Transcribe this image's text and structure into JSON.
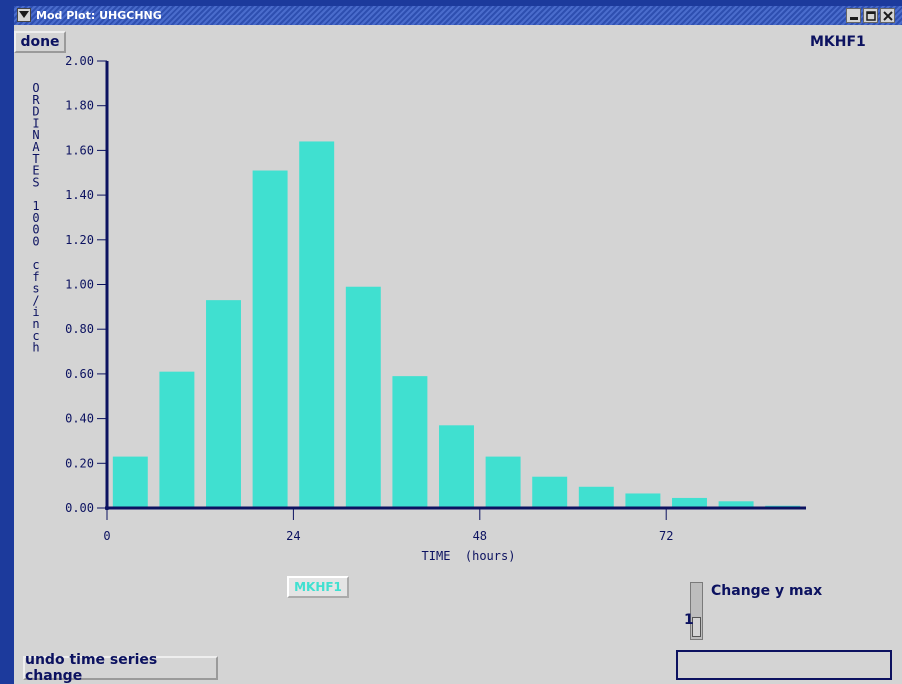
{
  "window": {
    "title": "Mod Plot: UHGCHNG",
    "buttons": [
      "minimize-icon",
      "maximize-icon",
      "close-icon"
    ]
  },
  "toolbar": {
    "done_label": "done"
  },
  "header": {
    "identifier": "MKHF1"
  },
  "chart_data": {
    "type": "bar",
    "xlabel": "TIME  (hours)",
    "ylabel": "ORDINATES 1000 cfs/inch",
    "ylim": [
      0,
      2.0
    ],
    "xlim": [
      0,
      90
    ],
    "y_ticks": [
      "0.00",
      "0.20",
      "0.40",
      "0.60",
      "0.80",
      "1.00",
      "1.20",
      "1.40",
      "1.60",
      "1.80",
      "2.00"
    ],
    "x_ticks": [
      {
        "value": 0,
        "label": "0"
      },
      {
        "value": 24,
        "label": "24"
      },
      {
        "value": 48,
        "label": "48"
      },
      {
        "value": 72,
        "label": "72"
      }
    ],
    "bar_width_hours": 4.5,
    "series": [
      {
        "name": "MKHF1",
        "color": "#40e0d0",
        "x": [
          3,
          9,
          15,
          21,
          27,
          33,
          39,
          45,
          51,
          57,
          63,
          69,
          75,
          81,
          87
        ],
        "values": [
          0.23,
          0.61,
          0.93,
          1.51,
          1.64,
          0.99,
          0.59,
          0.37,
          0.23,
          0.14,
          0.095,
          0.065,
          0.045,
          0.03,
          0.01
        ]
      }
    ],
    "grid": false
  },
  "legend": {
    "label": "MKHF1"
  },
  "ymax_control": {
    "label": "Change y max",
    "value": "1"
  },
  "actions": {
    "undo_label": "undo time series change"
  },
  "status": {
    "text": ""
  },
  "colors": {
    "axis": "#0c1260",
    "bar": "#40e0d0",
    "background": "#d4d4d4",
    "desktop": "#1c3a9c"
  }
}
